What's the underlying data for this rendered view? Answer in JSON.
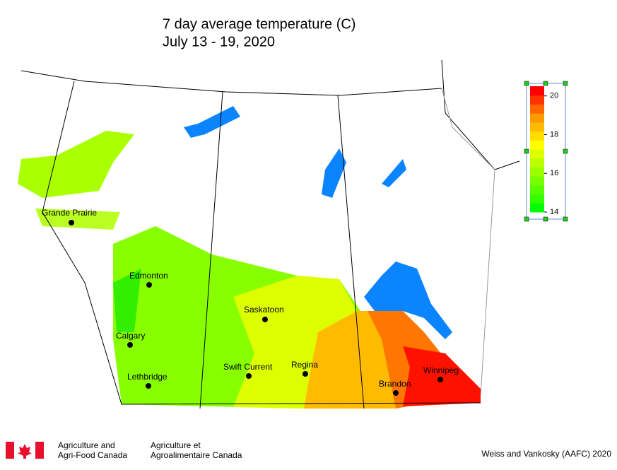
{
  "title": "7 day average temperature (C)",
  "subtitle": "July 13 - 19, 2020",
  "cities": [
    "Grande Prairie",
    "Edmonton",
    "Saskatoon",
    "Calgary",
    "Regina",
    "Swift Current",
    "Winnipeg",
    "Lethbridge",
    "Brandon"
  ],
  "legend": {
    "lim": [
      14,
      20.5
    ],
    "ticks": [
      14,
      16,
      18,
      20
    ],
    "colors": [
      "#00ff00",
      "#33ff00",
      "#55ff00",
      "#77ff00",
      "#99ff00",
      "#bbff00",
      "#ddff00",
      "#ffff00",
      "#ffdd00",
      "#ffbb00",
      "#ff9900",
      "#ff6600",
      "#ff3300",
      "#ff0000"
    ]
  },
  "footer": {
    "en_1": "Agriculture and",
    "en_2": "Agri-Food Canada",
    "fr_1": "Agriculture et",
    "fr_2": "Agroalimentaire Canada",
    "credit": "Weiss and Vankosky (AAFC) 2020"
  }
}
